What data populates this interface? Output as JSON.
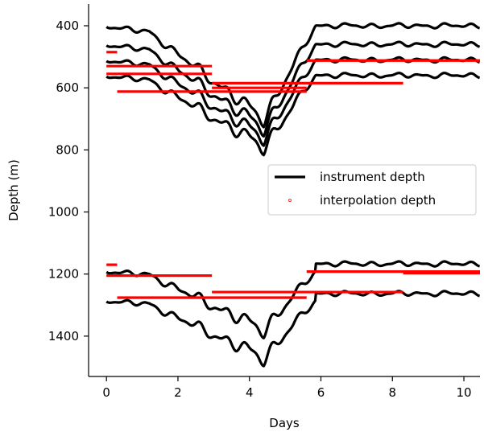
{
  "chart_data": {
    "type": "line",
    "title": "",
    "xlabel": "Days",
    "ylabel": "Depth (m)",
    "xlim": [
      -0.5,
      10.45
    ],
    "ylim": [
      1530,
      330
    ],
    "y_inverted": true,
    "xticks": [
      0,
      2,
      4,
      6,
      8,
      10
    ],
    "yticks": [
      400,
      600,
      800,
      1000,
      1200,
      1400
    ],
    "grid": false,
    "legend": {
      "placement": "center-right",
      "entries": [
        {
          "label": "instrument depth",
          "marker": "line",
          "color": "#000000"
        },
        {
          "label": "interpolation depth",
          "marker": "point",
          "color": "#ff0000"
        }
      ]
    },
    "instrument_depth_series": [
      {
        "base": 400,
        "peak_depth": 700,
        "color": "#000000"
      },
      {
        "base": 460,
        "peak_depth": 730,
        "color": "#000000"
      },
      {
        "base": 510,
        "peak_depth": 760,
        "color": "#000000"
      },
      {
        "base": 560,
        "peak_depth": 790,
        "color": "#000000"
      },
      {
        "base": 1190,
        "peak_depth": 1380,
        "color": "#000000"
      },
      {
        "base": 1285,
        "peak_depth": 1470,
        "color": "#000000"
      }
    ],
    "interpolation_depth_segments": [
      {
        "x": [
          0.0,
          0.3
        ],
        "y": 485
      },
      {
        "x": [
          0.0,
          2.95
        ],
        "y": 530
      },
      {
        "x": [
          0.0,
          2.95
        ],
        "y": 555
      },
      {
        "x": [
          0.3,
          5.6
        ],
        "y": 612
      },
      {
        "x": [
          2.95,
          5.6
        ],
        "y": 600
      },
      {
        "x": [
          2.95,
          8.3
        ],
        "y": 585
      },
      {
        "x": [
          5.6,
          10.45
        ],
        "y": 512
      },
      {
        "x": [
          0.0,
          0.3
        ],
        "y": 1170
      },
      {
        "x": [
          0.0,
          2.95
        ],
        "y": 1205
      },
      {
        "x": [
          0.3,
          5.6
        ],
        "y": 1276
      },
      {
        "x": [
          2.95,
          8.3
        ],
        "y": 1258
      },
      {
        "x": [
          5.6,
          10.45
        ],
        "y": 1192
      },
      {
        "x": [
          8.3,
          10.45
        ],
        "y": 1197
      }
    ]
  }
}
